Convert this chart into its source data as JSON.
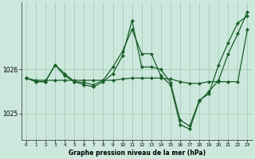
{
  "background_color": "#cce8dc",
  "grid_color": "#aacfbe",
  "line_color": "#1a5e2a",
  "xlabel": "Graphe pression niveau de la mer (hPa)",
  "xlim": [
    -0.5,
    23.5
  ],
  "ylim": [
    1024.4,
    1027.5
  ],
  "yticks": [
    1025,
    1026
  ],
  "xticks": [
    0,
    1,
    2,
    3,
    4,
    5,
    6,
    7,
    8,
    9,
    10,
    11,
    12,
    13,
    14,
    15,
    16,
    17,
    18,
    19,
    20,
    21,
    22,
    23
  ],
  "series": [
    {
      "x": [
        0,
        1,
        2,
        3,
        4,
        5,
        6,
        7,
        8,
        9,
        10,
        11,
        12,
        13,
        14,
        15,
        16,
        17,
        18,
        19,
        20,
        21,
        22,
        23
      ],
      "y": [
        1025.8,
        1025.75,
        1025.75,
        1025.75,
        1025.75,
        1025.75,
        1025.75,
        1025.75,
        1025.75,
        1025.75,
        1025.78,
        1025.8,
        1025.8,
        1025.8,
        1025.8,
        1025.78,
        1025.72,
        1025.68,
        1025.68,
        1025.72,
        1025.72,
        1025.72,
        1025.72,
        1026.9
      ]
    },
    {
      "x": [
        0,
        1,
        2,
        3,
        4,
        5,
        6,
        7,
        8,
        9,
        10,
        11,
        12,
        13,
        14,
        15,
        16,
        17,
        18,
        19,
        20,
        21,
        22,
        23
      ],
      "y": [
        1025.8,
        1025.72,
        1025.72,
        1026.1,
        1025.85,
        1025.72,
        1025.65,
        1025.6,
        1025.72,
        1025.9,
        1026.3,
        1027.1,
        1026.05,
        1026.05,
        1026.0,
        1025.7,
        1024.85,
        1024.72,
        1025.3,
        1025.45,
        1026.1,
        1026.6,
        1027.05,
        1027.2
      ]
    },
    {
      "x": [
        0,
        1,
        2,
        3,
        4,
        5,
        6,
        7,
        8,
        9,
        10,
        11,
        12,
        13,
        14,
        15,
        16,
        17,
        18,
        19,
        20,
        21,
        22,
        23
      ],
      "y": [
        1025.8,
        1025.72,
        1025.72,
        1026.1,
        1025.9,
        1025.72,
        1025.7,
        1025.65,
        1025.75,
        1026.05,
        1026.4,
        1026.9,
        1026.35,
        1026.35,
        1025.85,
        1025.65,
        1024.75,
        1024.65,
        1025.28,
        1025.5,
        1025.75,
        1026.35,
        1026.8,
        1027.3
      ]
    }
  ]
}
